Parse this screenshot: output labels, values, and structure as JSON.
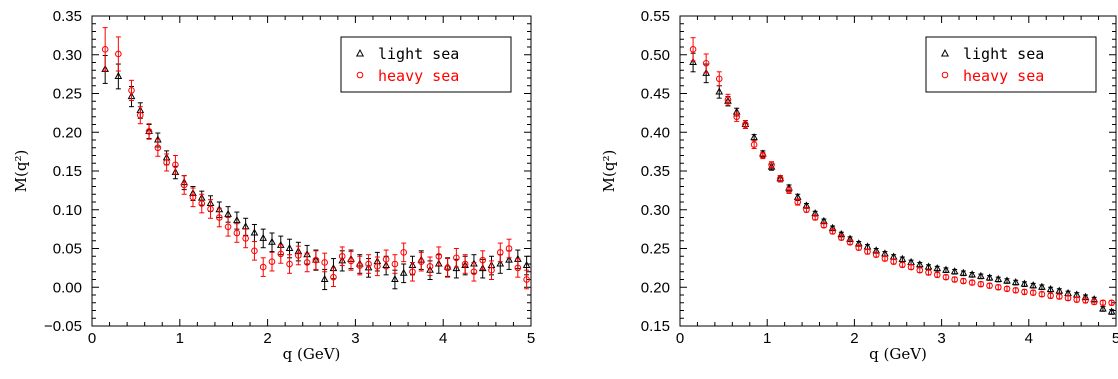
{
  "figure": {
    "colors": {
      "light_sea": "#000000",
      "heavy_sea": "#ff0000",
      "axis": "#000000"
    },
    "icons": {
      "light_sea": "triangle-marker-icon",
      "heavy_sea": "circle-marker-icon"
    }
  },
  "chart_data": [
    {
      "type": "scatter",
      "title": "",
      "xlabel": "q (GeV)",
      "ylabel": "M(q²)",
      "xlim": [
        0,
        5
      ],
      "ylim": [
        -0.05,
        0.35
      ],
      "xticks": [
        "0",
        "1",
        "2",
        "3",
        "4",
        "5"
      ],
      "yticks": [
        "−0.05",
        "0.00",
        "0.05",
        "0.10",
        "0.15",
        "0.20",
        "0.25",
        "0.30",
        "0.35"
      ],
      "grid": false,
      "legend": {
        "position": "top-right",
        "entries": [
          "light sea",
          "heavy sea"
        ]
      },
      "series": [
        {
          "name": "light sea",
          "marker": "triangle",
          "color": "#000000",
          "points": [
            [
              0.15,
              0.281,
              0.018
            ],
            [
              0.3,
              0.272,
              0.016
            ],
            [
              0.45,
              0.246,
              0.013
            ],
            [
              0.55,
              0.228,
              0.01
            ],
            [
              0.65,
              0.201,
              0.009
            ],
            [
              0.75,
              0.19,
              0.009
            ],
            [
              0.85,
              0.167,
              0.009
            ],
            [
              0.95,
              0.148,
              0.008
            ],
            [
              1.05,
              0.135,
              0.009
            ],
            [
              1.15,
              0.121,
              0.009
            ],
            [
              1.25,
              0.115,
              0.009
            ],
            [
              1.35,
              0.108,
              0.01
            ],
            [
              1.45,
              0.1,
              0.01
            ],
            [
              1.55,
              0.094,
              0.01
            ],
            [
              1.65,
              0.086,
              0.011
            ],
            [
              1.75,
              0.078,
              0.011
            ],
            [
              1.85,
              0.07,
              0.011
            ],
            [
              1.95,
              0.063,
              0.012
            ],
            [
              2.05,
              0.058,
              0.012
            ],
            [
              2.15,
              0.054,
              0.012
            ],
            [
              2.25,
              0.05,
              0.012
            ],
            [
              2.35,
              0.046,
              0.012
            ],
            [
              2.45,
              0.042,
              0.012
            ],
            [
              2.55,
              0.035,
              0.013
            ],
            [
              2.65,
              0.01,
              0.013
            ],
            [
              2.75,
              0.024,
              0.013
            ],
            [
              2.85,
              0.034,
              0.013
            ],
            [
              2.95,
              0.036,
              0.012
            ],
            [
              3.05,
              0.03,
              0.012
            ],
            [
              3.15,
              0.025,
              0.012
            ],
            [
              3.25,
              0.033,
              0.012
            ],
            [
              3.35,
              0.028,
              0.012
            ],
            [
              3.45,
              0.01,
              0.012
            ],
            [
              3.55,
              0.018,
              0.012
            ],
            [
              3.65,
              0.028,
              0.012
            ],
            [
              3.75,
              0.035,
              0.012
            ],
            [
              3.85,
              0.022,
              0.012
            ],
            [
              3.95,
              0.03,
              0.012
            ],
            [
              4.05,
              0.026,
              0.012
            ],
            [
              4.15,
              0.024,
              0.012
            ],
            [
              4.25,
              0.028,
              0.012
            ],
            [
              4.35,
              0.03,
              0.012
            ],
            [
              4.45,
              0.024,
              0.012
            ],
            [
              4.55,
              0.028,
              0.012
            ],
            [
              4.65,
              0.03,
              0.012
            ],
            [
              4.75,
              0.035,
              0.012
            ],
            [
              4.85,
              0.036,
              0.012
            ],
            [
              4.95,
              0.028,
              0.012
            ]
          ]
        },
        {
          "name": "heavy sea",
          "marker": "circle",
          "color": "#ff0000",
          "points": [
            [
              0.15,
              0.307,
              0.028
            ],
            [
              0.3,
              0.301,
              0.022
            ],
            [
              0.45,
              0.254,
              0.013
            ],
            [
              0.55,
              0.222,
              0.011
            ],
            [
              0.65,
              0.201,
              0.01
            ],
            [
              0.75,
              0.18,
              0.011
            ],
            [
              0.85,
              0.161,
              0.011
            ],
            [
              0.95,
              0.158,
              0.012
            ],
            [
              1.05,
              0.132,
              0.012
            ],
            [
              1.15,
              0.116,
              0.012
            ],
            [
              1.25,
              0.108,
              0.012
            ],
            [
              1.35,
              0.101,
              0.012
            ],
            [
              1.45,
              0.09,
              0.012
            ],
            [
              1.55,
              0.078,
              0.012
            ],
            [
              1.65,
              0.07,
              0.012
            ],
            [
              1.75,
              0.063,
              0.012
            ],
            [
              1.85,
              0.047,
              0.012
            ],
            [
              1.95,
              0.026,
              0.012
            ],
            [
              2.05,
              0.033,
              0.012
            ],
            [
              2.15,
              0.043,
              0.012
            ],
            [
              2.25,
              0.03,
              0.012
            ],
            [
              2.35,
              0.041,
              0.012
            ],
            [
              2.45,
              0.032,
              0.012
            ],
            [
              2.55,
              0.035,
              0.012
            ],
            [
              2.65,
              0.032,
              0.012
            ],
            [
              2.75,
              0.013,
              0.012
            ],
            [
              2.85,
              0.04,
              0.012
            ],
            [
              2.95,
              0.034,
              0.012
            ],
            [
              3.05,
              0.028,
              0.012
            ],
            [
              3.15,
              0.03,
              0.012
            ],
            [
              3.25,
              0.027,
              0.012
            ],
            [
              3.35,
              0.036,
              0.012
            ],
            [
              3.45,
              0.03,
              0.012
            ],
            [
              3.55,
              0.045,
              0.012
            ],
            [
              3.65,
              0.02,
              0.012
            ],
            [
              3.75,
              0.033,
              0.012
            ],
            [
              3.85,
              0.027,
              0.012
            ],
            [
              3.95,
              0.04,
              0.012
            ],
            [
              4.05,
              0.025,
              0.012
            ],
            [
              4.15,
              0.038,
              0.012
            ],
            [
              4.25,
              0.03,
              0.012
            ],
            [
              4.35,
              0.02,
              0.012
            ],
            [
              4.45,
              0.035,
              0.012
            ],
            [
              4.55,
              0.022,
              0.012
            ],
            [
              4.65,
              0.045,
              0.012
            ],
            [
              4.75,
              0.05,
              0.012
            ],
            [
              4.85,
              0.025,
              0.012
            ],
            [
              4.95,
              0.01,
              0.012
            ]
          ]
        }
      ]
    },
    {
      "type": "scatter",
      "title": "",
      "xlabel": "q (GeV)",
      "ylabel": "M(q²)",
      "xlim": [
        0,
        5
      ],
      "ylim": [
        0.15,
        0.55
      ],
      "xticks": [
        "0",
        "1",
        "2",
        "3",
        "4",
        "5"
      ],
      "yticks": [
        "0.15",
        "0.20",
        "0.25",
        "0.30",
        "0.35",
        "0.40",
        "0.45",
        "0.50",
        "0.55"
      ],
      "grid": false,
      "legend": {
        "position": "top-right",
        "entries": [
          "light sea",
          "heavy sea"
        ]
      },
      "series": [
        {
          "name": "light sea",
          "marker": "triangle",
          "color": "#000000",
          "points": [
            [
              0.15,
              0.49,
              0.012
            ],
            [
              0.3,
              0.476,
              0.012
            ],
            [
              0.45,
              0.452,
              0.008
            ],
            [
              0.55,
              0.44,
              0.006
            ],
            [
              0.65,
              0.426,
              0.005
            ],
            [
              0.75,
              0.41,
              0.005
            ],
            [
              0.85,
              0.393,
              0.004
            ],
            [
              0.95,
              0.372,
              0.004
            ],
            [
              1.05,
              0.355,
              0.004
            ],
            [
              1.15,
              0.34,
              0.004
            ],
            [
              1.25,
              0.328,
              0.004
            ],
            [
              1.35,
              0.316,
              0.004
            ],
            [
              1.45,
              0.305,
              0.003
            ],
            [
              1.55,
              0.295,
              0.003
            ],
            [
              1.65,
              0.285,
              0.003
            ],
            [
              1.75,
              0.276,
              0.003
            ],
            [
              1.85,
              0.268,
              0.003
            ],
            [
              1.95,
              0.262,
              0.003
            ],
            [
              2.05,
              0.256,
              0.003
            ],
            [
              2.15,
              0.252,
              0.003
            ],
            [
              2.25,
              0.247,
              0.003
            ],
            [
              2.35,
              0.243,
              0.003
            ],
            [
              2.45,
              0.239,
              0.003
            ],
            [
              2.55,
              0.236,
              0.003
            ],
            [
              2.65,
              0.232,
              0.003
            ],
            [
              2.75,
              0.229,
              0.003
            ],
            [
              2.85,
              0.226,
              0.003
            ],
            [
              2.95,
              0.224,
              0.003
            ],
            [
              3.05,
              0.222,
              0.003
            ],
            [
              3.15,
              0.22,
              0.003
            ],
            [
              3.25,
              0.218,
              0.003
            ],
            [
              3.35,
              0.216,
              0.003
            ],
            [
              3.45,
              0.214,
              0.003
            ],
            [
              3.55,
              0.212,
              0.003
            ],
            [
              3.65,
              0.21,
              0.003
            ],
            [
              3.75,
              0.208,
              0.003
            ],
            [
              3.85,
              0.206,
              0.003
            ],
            [
              3.95,
              0.204,
              0.003
            ],
            [
              4.05,
              0.202,
              0.003
            ],
            [
              4.15,
              0.2,
              0.003
            ],
            [
              4.25,
              0.197,
              0.003
            ],
            [
              4.35,
              0.195,
              0.003
            ],
            [
              4.45,
              0.192,
              0.003
            ],
            [
              4.55,
              0.19,
              0.003
            ],
            [
              4.65,
              0.187,
              0.003
            ],
            [
              4.75,
              0.184,
              0.003
            ],
            [
              4.85,
              0.172,
              0.003
            ],
            [
              4.95,
              0.168,
              0.003
            ]
          ]
        },
        {
          "name": "heavy sea",
          "marker": "circle",
          "color": "#ff0000",
          "points": [
            [
              0.15,
              0.507,
              0.015
            ],
            [
              0.3,
              0.489,
              0.012
            ],
            [
              0.45,
              0.469,
              0.009
            ],
            [
              0.55,
              0.442,
              0.007
            ],
            [
              0.65,
              0.42,
              0.006
            ],
            [
              0.75,
              0.41,
              0.005
            ],
            [
              0.85,
              0.384,
              0.005
            ],
            [
              0.95,
              0.37,
              0.004
            ],
            [
              1.05,
              0.358,
              0.004
            ],
            [
              1.15,
              0.34,
              0.004
            ],
            [
              1.25,
              0.325,
              0.004
            ],
            [
              1.35,
              0.31,
              0.004
            ],
            [
              1.45,
              0.3,
              0.003
            ],
            [
              1.55,
              0.29,
              0.003
            ],
            [
              1.65,
              0.28,
              0.003
            ],
            [
              1.75,
              0.272,
              0.003
            ],
            [
              1.85,
              0.264,
              0.003
            ],
            [
              1.95,
              0.258,
              0.003
            ],
            [
              2.05,
              0.251,
              0.003
            ],
            [
              2.15,
              0.246,
              0.003
            ],
            [
              2.25,
              0.242,
              0.003
            ],
            [
              2.35,
              0.237,
              0.003
            ],
            [
              2.45,
              0.233,
              0.003
            ],
            [
              2.55,
              0.229,
              0.003
            ],
            [
              2.65,
              0.226,
              0.003
            ],
            [
              2.75,
              0.222,
              0.003
            ],
            [
              2.85,
              0.219,
              0.003
            ],
            [
              2.95,
              0.216,
              0.003
            ],
            [
              3.05,
              0.213,
              0.003
            ],
            [
              3.15,
              0.21,
              0.003
            ],
            [
              3.25,
              0.208,
              0.003
            ],
            [
              3.35,
              0.206,
              0.003
            ],
            [
              3.45,
              0.204,
              0.003
            ],
            [
              3.55,
              0.202,
              0.003
            ],
            [
              3.65,
              0.2,
              0.003
            ],
            [
              3.75,
              0.198,
              0.003
            ],
            [
              3.85,
              0.196,
              0.003
            ],
            [
              3.95,
              0.194,
              0.003
            ],
            [
              4.05,
              0.193,
              0.003
            ],
            [
              4.15,
              0.191,
              0.003
            ],
            [
              4.25,
              0.189,
              0.003
            ],
            [
              4.35,
              0.188,
              0.003
            ],
            [
              4.45,
              0.186,
              0.003
            ],
            [
              4.55,
              0.184,
              0.003
            ],
            [
              4.65,
              0.183,
              0.003
            ],
            [
              4.75,
              0.181,
              0.003
            ],
            [
              4.85,
              0.18,
              0.003
            ],
            [
              4.95,
              0.18,
              0.003
            ]
          ]
        }
      ]
    }
  ]
}
